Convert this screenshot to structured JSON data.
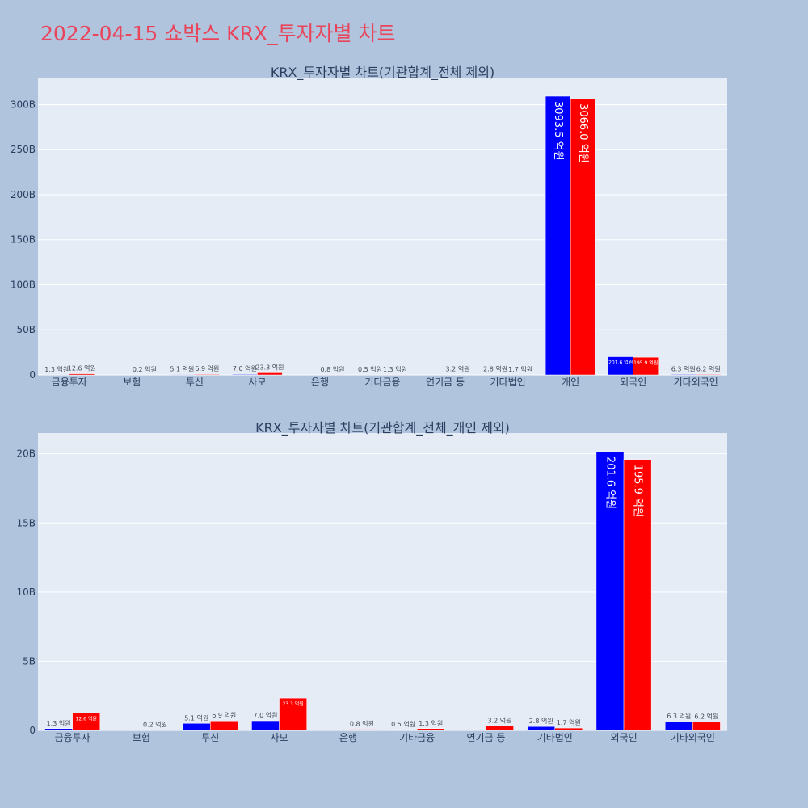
{
  "page": {
    "title": "2022-04-15 쇼박스 KRX_투자자별 차트"
  },
  "colors": {
    "series_a": "#0000ff",
    "series_b": "#ff0000",
    "plot_bg": "#e5ecf6",
    "page_bg": "#b0c4de",
    "title": "#e9445a"
  },
  "chart_data": [
    {
      "type": "bar",
      "title": "KRX_투자자별 차트(기관합계_전체 제외)",
      "categories": [
        "금융투자",
        "보험",
        "투신",
        "사모",
        "은행",
        "기타금융",
        "연기금 등",
        "기타법인",
        "개인",
        "외국인",
        "기타외국인"
      ],
      "series": [
        {
          "values": [
            1.3,
            0,
            5.1,
            7.0,
            0,
            0.5,
            0,
            2.8,
            3093.5,
            201.6,
            6.3
          ],
          "labels": [
            "1.3 억원",
            "",
            "5.1 억원",
            "7.0 억원",
            "",
            "0.5 억원",
            "",
            "2.8 억원",
            "3093.5 억원",
            "201.6 억원",
            "6.3 억원"
          ]
        },
        {
          "values": [
            12.6,
            0.2,
            6.9,
            23.3,
            0.8,
            1.3,
            3.2,
            1.7,
            3066.0,
            195.9,
            6.2
          ],
          "labels": [
            "12.6 억원",
            "0.2 억원",
            "6.9 억원",
            "23.3 억원",
            "0.8 억원",
            "1.3 억원",
            "3.2 억원",
            "1.7 억원",
            "3066.0 억원",
            "195.9 억원",
            "6.2 억원"
          ]
        }
      ],
      "unit_scale": 100000000,
      "ylim": [
        0,
        330000000000
      ],
      "yticks": [
        0,
        50000000000,
        100000000000,
        150000000000,
        200000000000,
        250000000000,
        300000000000
      ],
      "ytick_labels": [
        "0",
        "50B",
        "100B",
        "150B",
        "200B",
        "250B",
        "300B"
      ],
      "legend": "none",
      "grid": true
    },
    {
      "type": "bar",
      "title": "KRX_투자자별 차트(기관합계_전체_개인 제외)",
      "categories": [
        "금융투자",
        "보험",
        "투신",
        "사모",
        "은행",
        "기타금융",
        "연기금 등",
        "기타법인",
        "외국인",
        "기타외국인"
      ],
      "series": [
        {
          "values": [
            1.3,
            0,
            5.1,
            7.0,
            0,
            0.5,
            0,
            2.8,
            201.6,
            6.3
          ],
          "labels": [
            "1.3 억원",
            "",
            "5.1 억원",
            "7.0 억원",
            "",
            "0.5 억원",
            "",
            "2.8 억원",
            "201.6 억원",
            "6.3 억원"
          ]
        },
        {
          "values": [
            12.6,
            0.2,
            6.9,
            23.3,
            0.8,
            1.3,
            3.2,
            1.7,
            195.9,
            6.2
          ],
          "labels": [
            "12.6 억원",
            "0.2 억원",
            "6.9 억원",
            "23.3 억원",
            "0.8 억원",
            "1.3 억원",
            "3.2 억원",
            "1.7 억원",
            "195.9 억원",
            "6.2 억원"
          ]
        }
      ],
      "unit_scale": 100000000,
      "ylim": [
        0,
        21500000000
      ],
      "yticks": [
        0,
        5000000000,
        10000000000,
        15000000000,
        20000000000
      ],
      "ytick_labels": [
        "0",
        "5B",
        "10B",
        "15B",
        "20B"
      ],
      "legend": "none",
      "grid": true
    }
  ]
}
